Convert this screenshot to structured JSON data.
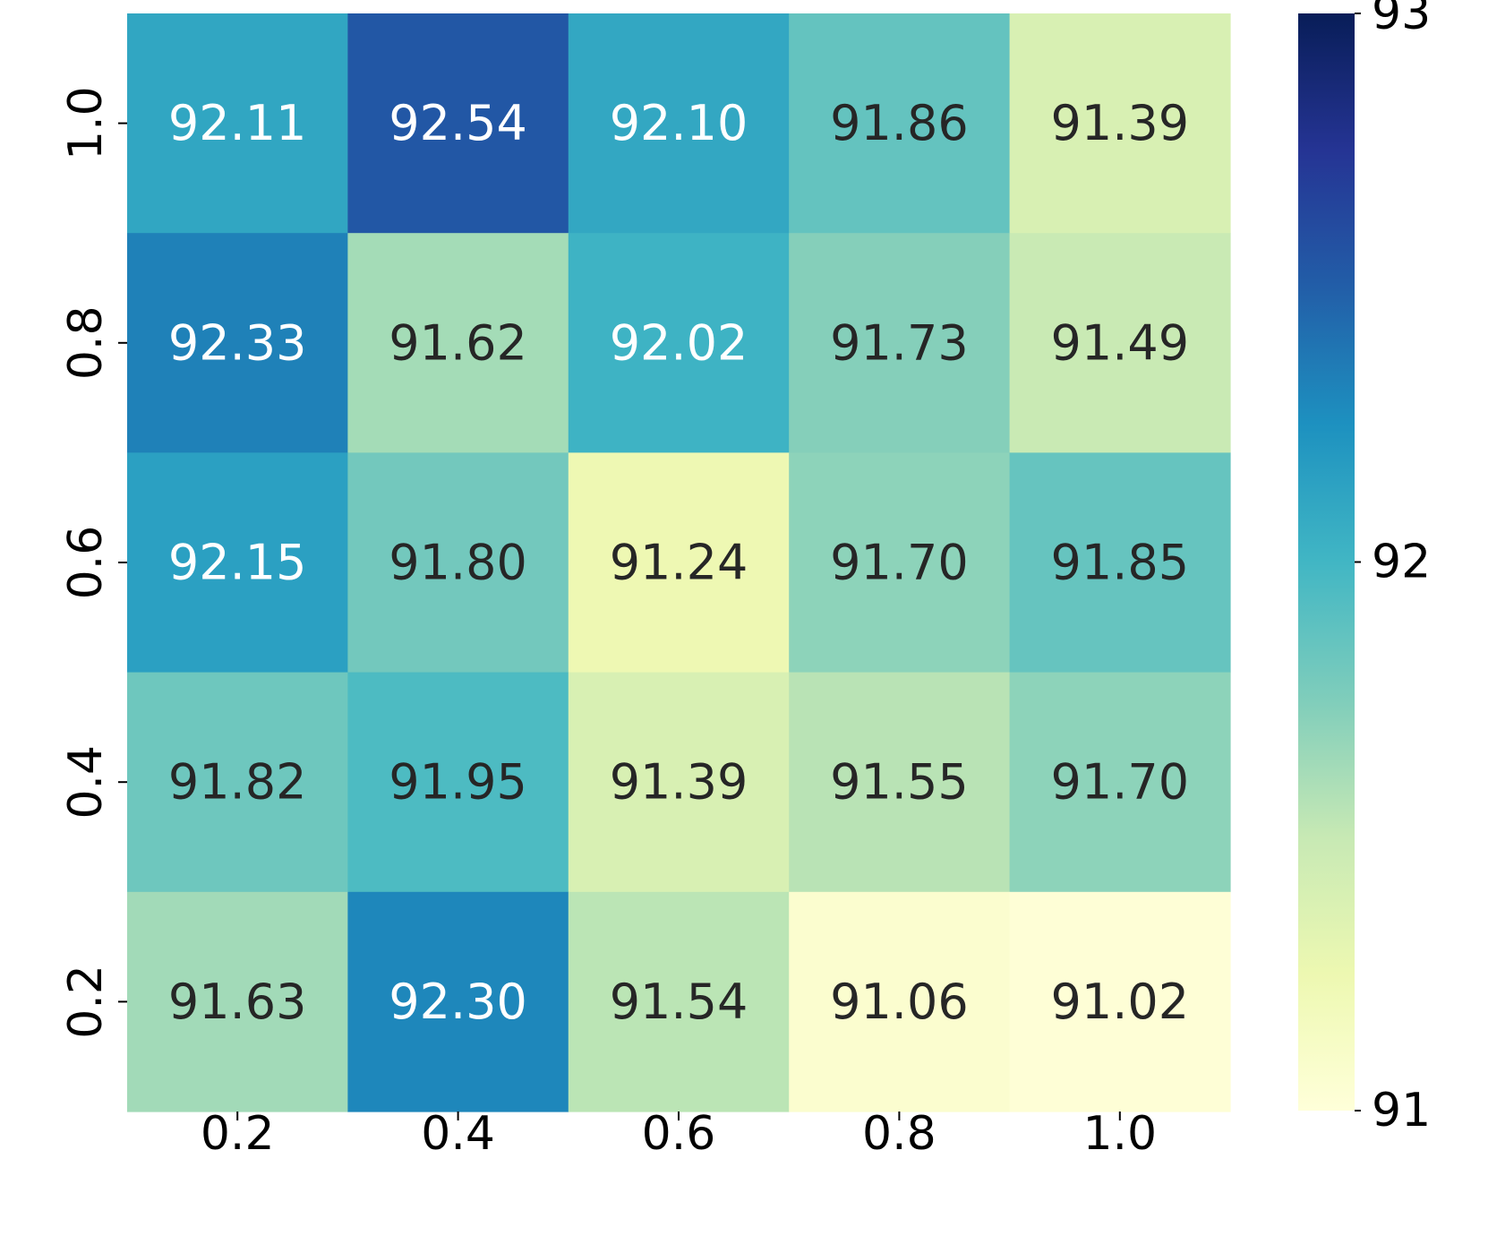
{
  "chart_data": {
    "type": "heatmap",
    "title": "",
    "xlabel": "",
    "ylabel": "",
    "x_categories": [
      "0.2",
      "0.4",
      "0.6",
      "0.8",
      "1.0"
    ],
    "y_categories": [
      "1.0",
      "0.8",
      "0.6",
      "0.4",
      "0.2"
    ],
    "values": [
      [
        92.11,
        92.54,
        92.1,
        91.86,
        91.39
      ],
      [
        92.33,
        91.62,
        92.02,
        91.73,
        91.49
      ],
      [
        92.15,
        91.8,
        91.24,
        91.7,
        91.85
      ],
      [
        91.82,
        91.95,
        91.39,
        91.55,
        91.7
      ],
      [
        91.63,
        92.3,
        91.54,
        91.06,
        91.02
      ]
    ],
    "value_format": "2 decimals",
    "colormap": "YlGnBu",
    "colorbar": {
      "min": 91,
      "max": 93,
      "ticks": [
        91,
        92,
        93
      ],
      "tick_labels": [
        "91",
        "92",
        "93"
      ]
    },
    "label_colors": {
      "dark": "#262626",
      "light": "#ffffff"
    }
  }
}
